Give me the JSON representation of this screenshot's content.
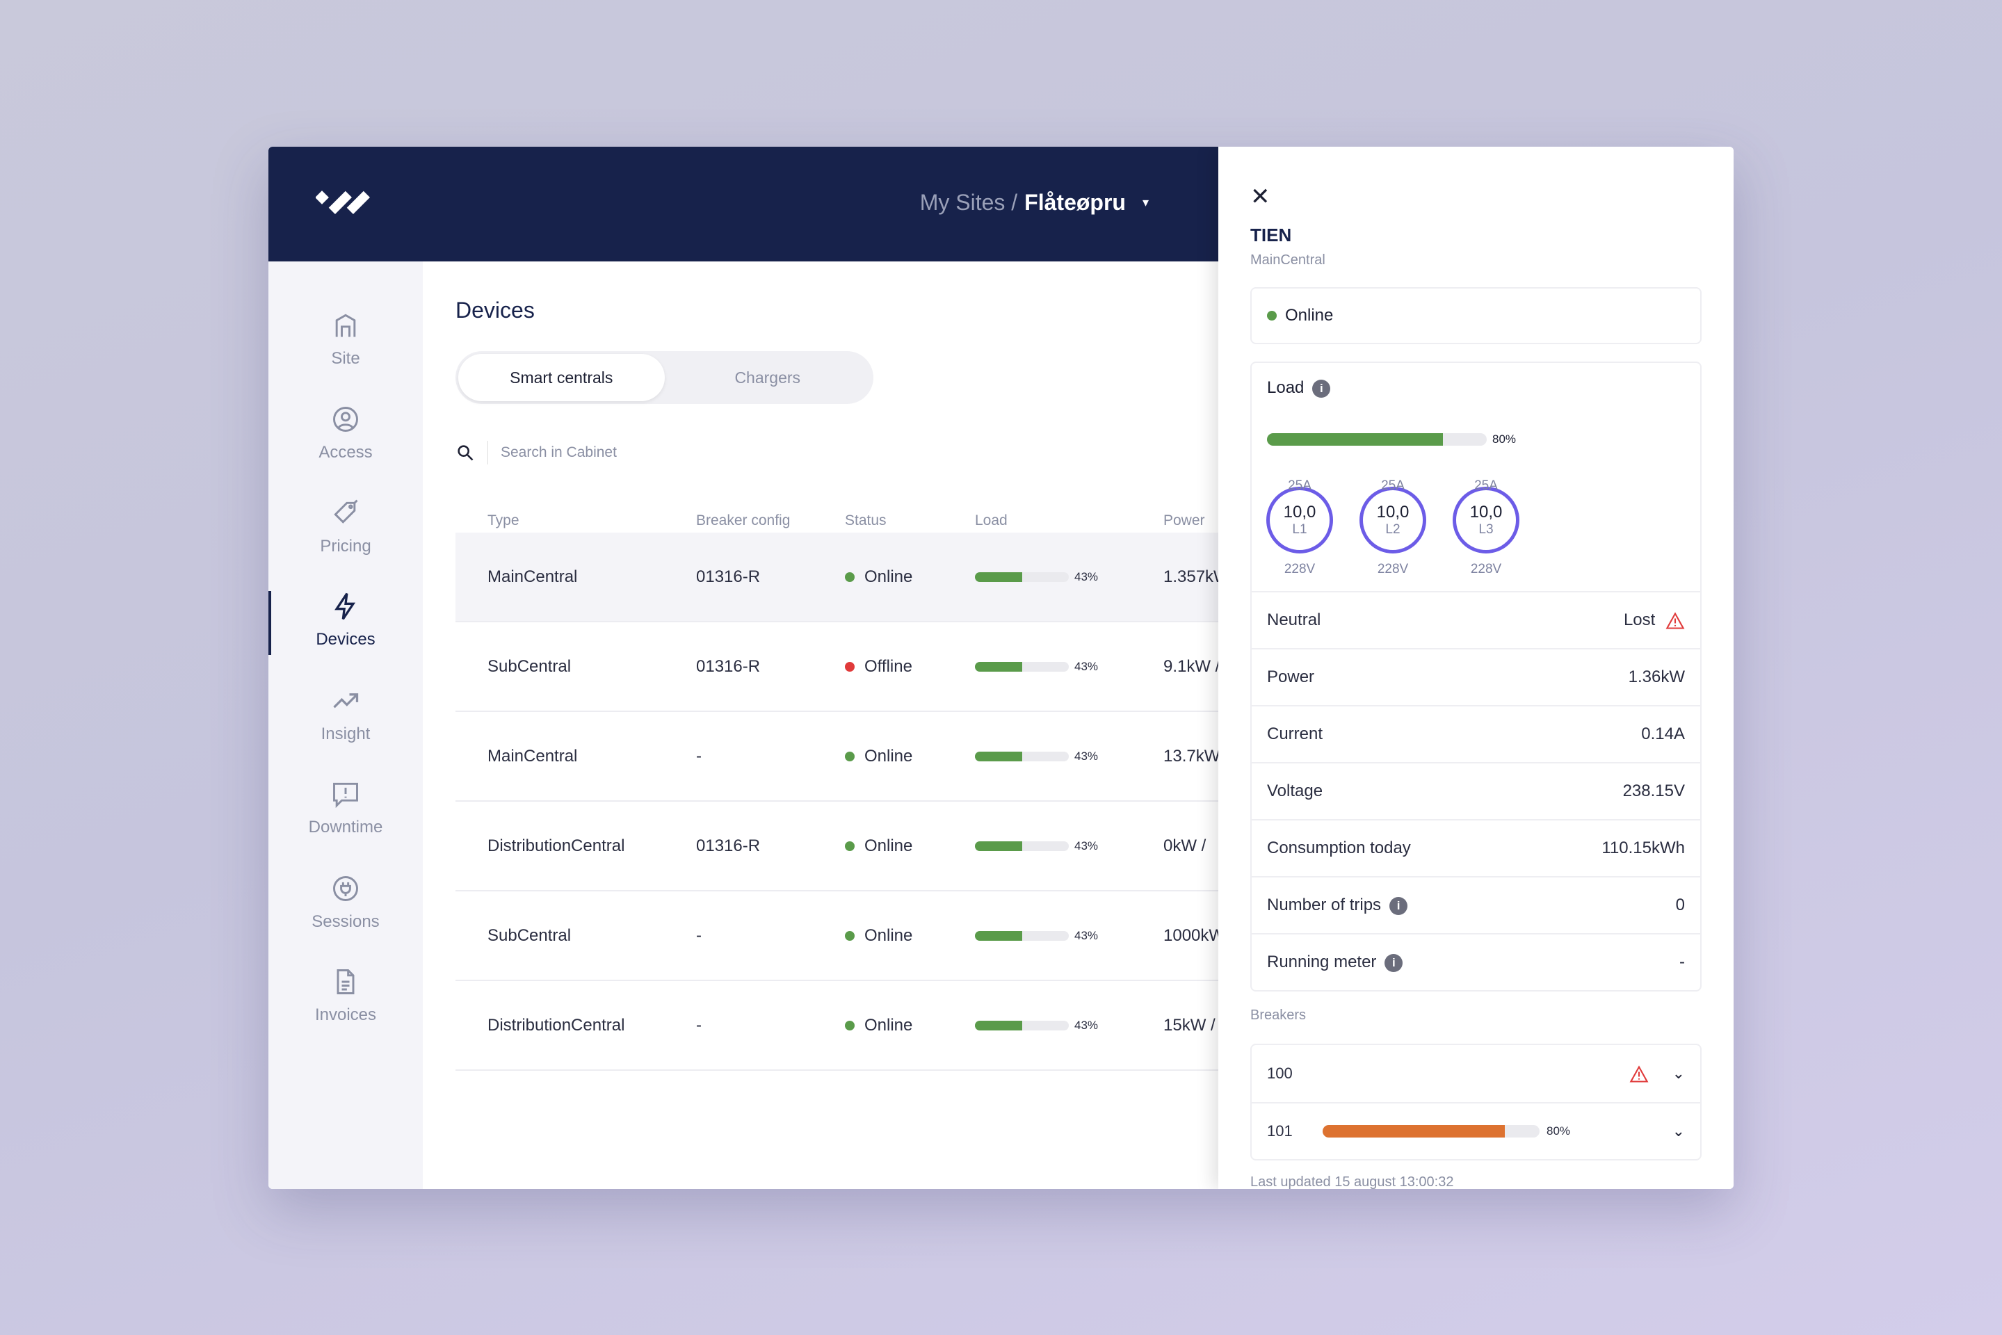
{
  "header": {
    "breadcrumb_root": "My Sites /",
    "site_name": "Flåteøpru",
    "caret": "▾"
  },
  "sidebar": {
    "items": [
      {
        "label": "Site",
        "icon": "home-icon"
      },
      {
        "label": "Access",
        "icon": "user-circle-icon"
      },
      {
        "label": "Pricing",
        "icon": "price-tag-icon"
      },
      {
        "label": "Devices",
        "icon": "lightning-icon",
        "active": true
      },
      {
        "label": "Insight",
        "icon": "trend-up-icon"
      },
      {
        "label": "Downtime",
        "icon": "alert-message-icon"
      },
      {
        "label": "Sessions",
        "icon": "plug-icon"
      },
      {
        "label": "Invoices",
        "icon": "document-icon"
      }
    ]
  },
  "main": {
    "title": "Devices",
    "tabs": [
      {
        "label": "Smart centrals",
        "active": true
      },
      {
        "label": "Chargers"
      }
    ],
    "search_placeholder": "Search in Cabinet",
    "columns": [
      "Type",
      "Breaker config",
      "Status",
      "Load",
      "Power"
    ],
    "rows": [
      {
        "type": "MainCentral",
        "breaker": "01316-R",
        "status": "Online",
        "load": 43,
        "load_label": "43%",
        "power": "1.357kW"
      },
      {
        "type": "SubCentral",
        "breaker": "01316-R",
        "status": "Offline",
        "load": 43,
        "load_label": "43%",
        "power": "9.1kW /"
      },
      {
        "type": "MainCentral",
        "breaker": "-",
        "status": "Online",
        "load": 43,
        "load_label": "43%",
        "power": "13.7kW"
      },
      {
        "type": "DistributionCentral",
        "breaker": "01316-R",
        "status": "Online",
        "load": 43,
        "load_label": "43%",
        "power": "0kW /"
      },
      {
        "type": "SubCentral",
        "breaker": "-",
        "status": "Online",
        "load": 43,
        "load_label": "43%",
        "power": "1000kW"
      },
      {
        "type": "DistributionCentral",
        "breaker": "-",
        "status": "Online",
        "load": 43,
        "load_label": "43%",
        "power": "15kW /"
      }
    ]
  },
  "panel": {
    "close": "✕",
    "title": "TIEN",
    "subtitle": "MainCentral",
    "status": "Online",
    "load_label": "Load",
    "load_pct": 80,
    "load_pct_label": "80%",
    "phases": [
      {
        "max": "25A",
        "value": "10,0",
        "name": "L1",
        "voltage": "228V"
      },
      {
        "max": "25A",
        "value": "10,0",
        "name": "L2",
        "voltage": "228V"
      },
      {
        "max": "25A",
        "value": "10,0",
        "name": "L3",
        "voltage": "228V"
      }
    ],
    "neutral": {
      "label": "Neutral",
      "value": "Lost"
    },
    "metrics": [
      {
        "label": "Power",
        "value": "1.36kW"
      },
      {
        "label": "Current",
        "value": "0.14A"
      },
      {
        "label": "Voltage",
        "value": "238.15V"
      },
      {
        "label": "Consumption today",
        "value": "110.15kWh"
      },
      {
        "label": "Number of trips",
        "value": "0",
        "info": true
      },
      {
        "label": "Running meter",
        "value": "-",
        "info": true
      }
    ],
    "breakers_label": "Breakers",
    "breakers": [
      {
        "id": "100",
        "warning": true
      },
      {
        "id": "101",
        "load": 80,
        "load_label": "80%"
      }
    ],
    "last_updated": "Last updated 15 august 13:00:32"
  },
  "colors": {
    "navy": "#17224b",
    "online": "#5a9b4a",
    "offline": "#e03a3a",
    "phase_ring": "#6c5ce7",
    "breaker_bar": "#dd7230",
    "warning": "#e03a3a"
  }
}
